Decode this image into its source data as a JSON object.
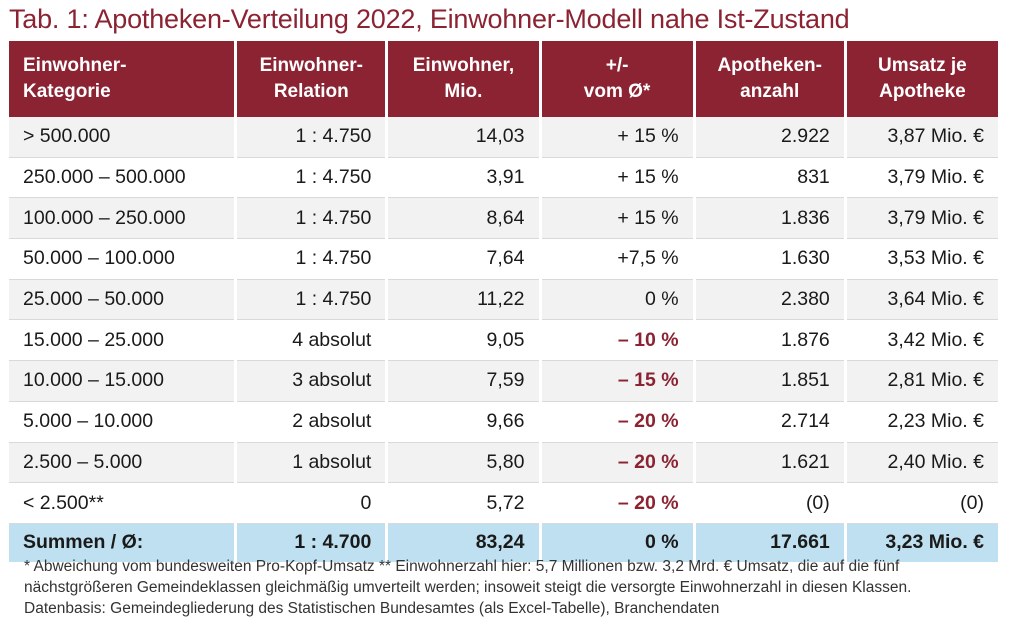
{
  "title": "Tab. 1: Apotheken-Verteilung 2022, Einwohner-Modell nahe Ist-Zustand",
  "headers": [
    [
      "Einwohner-",
      "Kategorie"
    ],
    [
      "Einwohner-",
      "Relation"
    ],
    [
      "Einwohner,",
      "Mio."
    ],
    [
      "+/-",
      "vom Ø*"
    ],
    [
      "Apotheken-",
      "anzahl"
    ],
    [
      "Umsatz je",
      "Apotheke"
    ]
  ],
  "rows": [
    {
      "kategorie": "> 500.000",
      "relation": "1 : 4.750",
      "einwohner": "14,03",
      "abweichung": "+ 15 %",
      "neg": false,
      "apotheken": "2.922",
      "umsatz": "3,87 Mio. €"
    },
    {
      "kategorie": "250.000 – 500.000",
      "relation": "1 : 4.750",
      "einwohner": "3,91",
      "abweichung": "+ 15 %",
      "neg": false,
      "apotheken": "831",
      "umsatz": "3,79 Mio. €"
    },
    {
      "kategorie": "100.000 – 250.000",
      "relation": "1 : 4.750",
      "einwohner": "8,64",
      "abweichung": "+ 15 %",
      "neg": false,
      "apotheken": "1.836",
      "umsatz": "3,79 Mio. €"
    },
    {
      "kategorie": "50.000 – 100.000",
      "relation": "1 : 4.750",
      "einwohner": "7,64",
      "abweichung": "+7,5 %",
      "neg": false,
      "apotheken": "1.630",
      "umsatz": "3,53 Mio. €"
    },
    {
      "kategorie": "25.000 – 50.000",
      "relation": "1 : 4.750",
      "einwohner": "11,22",
      "abweichung": "0 %",
      "neg": false,
      "apotheken": "2.380",
      "umsatz": "3,64 Mio. €"
    },
    {
      "kategorie": "15.000 – 25.000",
      "relation": "4 absolut",
      "einwohner": "9,05",
      "abweichung": "– 10 %",
      "neg": true,
      "apotheken": "1.876",
      "umsatz": "3,42 Mio. €"
    },
    {
      "kategorie": "10.000 – 15.000",
      "relation": "3 absolut",
      "einwohner": "7,59",
      "abweichung": "– 15 %",
      "neg": true,
      "apotheken": "1.851",
      "umsatz": "2,81 Mio. €"
    },
    {
      "kategorie": "5.000 – 10.000",
      "relation": "2 absolut",
      "einwohner": "9,66",
      "abweichung": "– 20 %",
      "neg": true,
      "apotheken": "2.714",
      "umsatz": "2,23 Mio. €"
    },
    {
      "kategorie": "2.500 – 5.000",
      "relation": "1 absolut",
      "einwohner": "5,80",
      "abweichung": "– 20 %",
      "neg": true,
      "apotheken": "1.621",
      "umsatz": "2,40 Mio. €"
    },
    {
      "kategorie": "< 2.500**",
      "relation": "0",
      "einwohner": "5,72",
      "abweichung": "– 20 %",
      "neg": true,
      "apotheken": "(0)",
      "umsatz": "(0)"
    }
  ],
  "summary": {
    "kategorie": "Summen / Ø:",
    "relation": "1 : 4.700",
    "einwohner": "83,24",
    "abweichung": "0 %",
    "apotheken": "17.661",
    "umsatz": "3,23 Mio. €"
  },
  "notes": [
    "* Abweichung vom bundesweiten Pro-Kopf-Umsatz   ** Einwohnerzahl hier: 5,7 Millionen bzw. 3,2 Mrd. € Umsatz, die auf die fünf",
    "nächstgrößeren Gemeindeklassen gleichmäßig umverteilt werden; insoweit steigt die versorgte Einwohnerzahl in diesen Klassen.",
    "Datenbasis: Gemeindegliederung des Statistischen Bundesamtes (als Excel-Tabelle), Branchendaten"
  ],
  "colors": {
    "header_bg": "#8b2332",
    "negative": "#8b2332",
    "summary_bg": "#bfe0f0",
    "stripe": "#f2f2f2"
  }
}
